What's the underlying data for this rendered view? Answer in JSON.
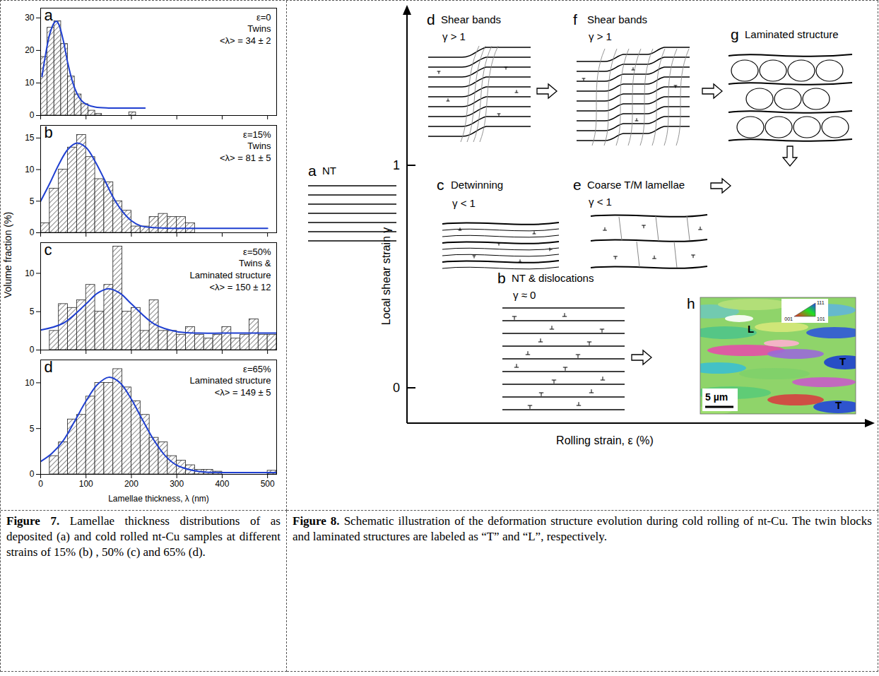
{
  "figure7": {
    "ylabel": "Volume fraction (%)",
    "caption_label": "Figure 7.",
    "caption": "Lamellae thickness distributions of as deposited (a) and cold rolled nt-Cu samples at different strains of 15% (b) , 50% (c) and 65% (d)."
  },
  "chart_data": [
    {
      "type": "histogram",
      "panel": "a",
      "annotations": [
        "ε=0",
        "Twins",
        "<λ> = 34 ± 2"
      ],
      "bins": [
        0,
        15,
        30,
        45,
        60,
        75,
        90,
        105,
        120,
        135,
        150,
        165,
        180,
        195,
        210
      ],
      "values": [
        18,
        27,
        29,
        22,
        12,
        6.5,
        3.5,
        1.5,
        0.5,
        0,
        0,
        0,
        0,
        1
      ],
      "fit": {
        "type": "line",
        "color": "#1f3fd0",
        "x": [
          3,
          10,
          20,
          30,
          35,
          40,
          50,
          60,
          70,
          80,
          90,
          100,
          120,
          150,
          190,
          230
        ],
        "values": [
          12,
          18,
          25,
          28.5,
          29,
          28,
          23,
          16,
          10.5,
          6.8,
          4.6,
          3.5,
          2.6,
          2.3,
          2.3,
          2.3
        ]
      },
      "xlim": [
        0,
        520
      ],
      "xticks": [
        0,
        100,
        200,
        300,
        400,
        500
      ],
      "ylim": [
        0,
        33
      ],
      "yticks": [
        0,
        10,
        20,
        30
      ],
      "tick_labels": "y"
    },
    {
      "type": "histogram",
      "panel": "b",
      "annotations": [
        "ε=15%",
        "Twins",
        "<λ> = 81 ± 5"
      ],
      "bins": [
        0,
        20,
        40,
        60,
        80,
        100,
        120,
        140,
        160,
        180,
        200,
        220,
        240,
        260,
        280,
        300,
        320,
        340
      ],
      "values": [
        1.5,
        7,
        10,
        13.5,
        15.5,
        12,
        8.5,
        8,
        5,
        3.5,
        1,
        1,
        2.5,
        3,
        2.5,
        2.5,
        1.5
      ],
      "fit": {
        "type": "line",
        "color": "#1f3fd0",
        "x": [
          0,
          20,
          40,
          60,
          80,
          100,
          120,
          140,
          160,
          180,
          200,
          220,
          250,
          300,
          400,
          500
        ],
        "values": [
          5,
          7.8,
          10.8,
          13.2,
          14.2,
          13.5,
          11.3,
          8.5,
          5.6,
          3.4,
          1.9,
          1.1,
          0.8,
          0.7,
          0.7,
          0.7
        ]
      },
      "xlim": [
        0,
        520
      ],
      "xticks": [
        0,
        100,
        200,
        300,
        400,
        500
      ],
      "ylim": [
        0,
        17
      ],
      "yticks": [
        0,
        5,
        10,
        15
      ],
      "tick_labels": "y"
    },
    {
      "type": "histogram",
      "panel": "c",
      "annotations": [
        "ε=50%",
        "Twins &",
        "Laminated structure",
        "<λ> = 150 ± 12"
      ],
      "bins": [
        20,
        40,
        60,
        80,
        100,
        120,
        140,
        160,
        180,
        200,
        220,
        240,
        260,
        280,
        300,
        320,
        340,
        360,
        380,
        400,
        420,
        440,
        460,
        480,
        500,
        520
      ],
      "values": [
        2.5,
        6,
        5.5,
        6.5,
        8.5,
        5,
        8.5,
        13.5,
        5,
        5.5,
        2.5,
        6.5,
        2.5,
        2.5,
        2,
        3,
        2,
        1.5,
        2,
        3,
        1.5,
        2,
        4,
        2,
        2
      ],
      "fit": {
        "type": "line",
        "color": "#1f3fd0",
        "x": [
          0,
          50,
          100,
          125,
          150,
          175,
          200,
          250,
          300,
          350,
          400,
          450,
          500,
          520
        ],
        "values": [
          2.6,
          3.5,
          6,
          7.4,
          8,
          7.4,
          6,
          3.4,
          2.4,
          2.2,
          2.2,
          2.2,
          2.2,
          2.2
        ]
      },
      "xlim": [
        0,
        520
      ],
      "xticks": [
        0,
        100,
        200,
        300,
        400,
        500
      ],
      "ylim": [
        0,
        14
      ],
      "yticks": [
        0,
        5,
        10
      ],
      "tick_labels": "y"
    },
    {
      "type": "histogram",
      "panel": "d",
      "annotations": [
        "ε=65%",
        "Laminated structure",
        "<λ> = 149 ± 5"
      ],
      "bins": [
        20,
        40,
        60,
        80,
        100,
        120,
        140,
        160,
        180,
        200,
        220,
        240,
        260,
        280,
        300,
        320,
        340,
        360,
        380,
        400,
        420,
        440,
        460,
        480,
        500,
        520
      ],
      "values": [
        2,
        3.5,
        6,
        6.5,
        8.5,
        10,
        10,
        11.5,
        9.5,
        8,
        6.5,
        4,
        3.5,
        2,
        1.5,
        1,
        0.5,
        0.5,
        0.3,
        0,
        0,
        0,
        0,
        0,
        0.4
      ],
      "fit": {
        "type": "line",
        "color": "#1f3fd0",
        "x": [
          0,
          25,
          50,
          75,
          100,
          125,
          150,
          175,
          200,
          225,
          250,
          275,
          300,
          350,
          400,
          450,
          500,
          520
        ],
        "values": [
          1.4,
          2.3,
          3.7,
          5.8,
          8,
          9.8,
          10.6,
          10,
          8.2,
          5.9,
          3.7,
          2,
          1,
          0.3,
          0.2,
          0.2,
          0.2,
          0.2
        ]
      },
      "xlabel": "Lamellae thickness, λ (nm)",
      "xlim": [
        0,
        520
      ],
      "xticks": [
        0,
        100,
        200,
        300,
        400,
        500
      ],
      "ylim": [
        0,
        12.5
      ],
      "yticks": [
        0,
        5,
        10
      ]
    }
  ],
  "figure8": {
    "caption_label": "Figure 8.",
    "caption": "Schematic illustration of the deformation structure evolution during cold rolling of nt-Cu. The twin blocks and laminated structures are labeled as “T” and “L”, respectively.",
    "axes": {
      "y_label": "Local shear strain γ",
      "x_label": "Rolling strain, ε (%)",
      "y_ticks": [
        0,
        1
      ]
    },
    "stages": [
      {
        "letter": "a",
        "title": "NT"
      },
      {
        "letter": "b",
        "title": "NT & dislocations",
        "condition": "γ ≈ 0"
      },
      {
        "letter": "c",
        "title": "Detwinning",
        "condition": "γ < 1"
      },
      {
        "letter": "d",
        "title": "Shear bands",
        "condition": "γ > 1"
      },
      {
        "letter": "e",
        "title": "Coarse T/M lamellae",
        "condition": "γ < 1"
      },
      {
        "letter": "f",
        "title": "Shear bands",
        "condition": "γ > 1"
      },
      {
        "letter": "g",
        "title": "Laminated structure"
      },
      {
        "letter": "h",
        "labels": [
          "L",
          "T",
          "T"
        ],
        "scale_bar": "5 µm",
        "ipf_labels": [
          "001",
          "101",
          "111"
        ]
      }
    ]
  }
}
